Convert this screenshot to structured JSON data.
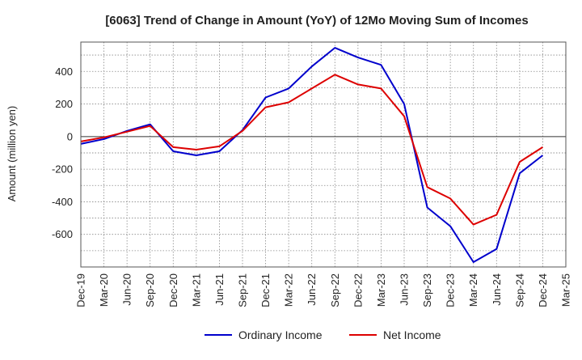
{
  "chart_data": {
    "type": "line",
    "title": "[6063]  Trend of Change in Amount (YoY) of 12Mo Moving Sum of Incomes",
    "xlabel": "",
    "ylabel": "Amount (million yen)",
    "ylim": [
      -800,
      580
    ],
    "yticks": [
      400,
      200,
      0,
      -200,
      -400,
      -600
    ],
    "ytick_labels": [
      "400",
      "200",
      "0",
      "-200",
      "-400",
      "-600"
    ],
    "categories": [
      "Dec-19",
      "Mar-20",
      "Jun-20",
      "Sep-20",
      "Dec-20",
      "Mar-21",
      "Jun-21",
      "Sep-21",
      "Dec-21",
      "Mar-22",
      "Jun-22",
      "Sep-22",
      "Dec-22",
      "Mar-23",
      "Jun-23",
      "Sep-23",
      "Dec-23",
      "Mar-24",
      "Jun-24",
      "Sep-24",
      "Dec-24",
      "Mar-25"
    ],
    "grid": true,
    "legend_position": "bottom",
    "series": [
      {
        "name": "Ordinary Income",
        "color": "#0000cc",
        "values": [
          -45,
          -15,
          35,
          75,
          -90,
          -115,
          -90,
          40,
          240,
          295,
          430,
          545,
          485,
          440,
          200,
          -435,
          -550,
          -770,
          -690,
          -225,
          -115,
          null
        ]
      },
      {
        "name": "Net Income",
        "color": "#dd0000",
        "values": [
          -30,
          -5,
          30,
          65,
          -65,
          -80,
          -60,
          35,
          180,
          210,
          295,
          380,
          320,
          295,
          125,
          -310,
          -380,
          -540,
          -480,
          -155,
          -65,
          null
        ]
      }
    ]
  }
}
